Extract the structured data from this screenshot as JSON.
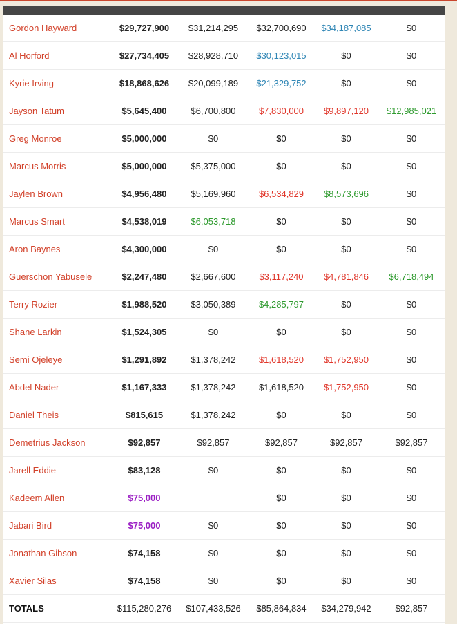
{
  "table": {
    "rows": [
      {
        "name": "Gordon Hayward",
        "cells": [
          "$29,727,900",
          "$31,214,295",
          "$32,700,690",
          "$34,187,085",
          "$0"
        ],
        "colors": [
          null,
          null,
          null,
          "#2f86b5",
          null
        ]
      },
      {
        "name": "Al Horford",
        "cells": [
          "$27,734,405",
          "$28,928,710",
          "$30,123,015",
          "$0",
          "$0"
        ],
        "colors": [
          null,
          null,
          "#2f86b5",
          null,
          null
        ]
      },
      {
        "name": "Kyrie Irving",
        "cells": [
          "$18,868,626",
          "$20,099,189",
          "$21,329,752",
          "$0",
          "$0"
        ],
        "colors": [
          null,
          null,
          "#2f86b5",
          null,
          null
        ]
      },
      {
        "name": "Jayson Tatum",
        "cells": [
          "$5,645,400",
          "$6,700,800",
          "$7,830,000",
          "$9,897,120",
          "$12,985,021"
        ],
        "colors": [
          null,
          null,
          "#e0362a",
          "#e0362a",
          "#2e9a2e"
        ]
      },
      {
        "name": "Greg Monroe",
        "cells": [
          "$5,000,000",
          "$0",
          "$0",
          "$0",
          "$0"
        ],
        "colors": [
          null,
          null,
          null,
          null,
          null
        ]
      },
      {
        "name": "Marcus Morris",
        "cells": [
          "$5,000,000",
          "$5,375,000",
          "$0",
          "$0",
          "$0"
        ],
        "colors": [
          null,
          null,
          null,
          null,
          null
        ]
      },
      {
        "name": "Jaylen Brown",
        "cells": [
          "$4,956,480",
          "$5,169,960",
          "$6,534,829",
          "$8,573,696",
          "$0"
        ],
        "colors": [
          null,
          null,
          "#e0362a",
          "#2e9a2e",
          null
        ]
      },
      {
        "name": "Marcus Smart",
        "cells": [
          "$4,538,019",
          "$6,053,718",
          "$0",
          "$0",
          "$0"
        ],
        "colors": [
          null,
          "#2e9a2e",
          null,
          null,
          null
        ]
      },
      {
        "name": "Aron Baynes",
        "cells": [
          "$4,300,000",
          "$0",
          "$0",
          "$0",
          "$0"
        ],
        "colors": [
          null,
          null,
          null,
          null,
          null
        ]
      },
      {
        "name": "Guerschon Yabusele",
        "cells": [
          "$2,247,480",
          "$2,667,600",
          "$3,117,240",
          "$4,781,846",
          "$6,718,494"
        ],
        "colors": [
          null,
          null,
          "#e0362a",
          "#e0362a",
          "#2e9a2e"
        ]
      },
      {
        "name": "Terry Rozier",
        "cells": [
          "$1,988,520",
          "$3,050,389",
          "$4,285,797",
          "$0",
          "$0"
        ],
        "colors": [
          null,
          null,
          "#2e9a2e",
          null,
          null
        ]
      },
      {
        "name": "Shane Larkin",
        "cells": [
          "$1,524,305",
          "$0",
          "$0",
          "$0",
          "$0"
        ],
        "colors": [
          null,
          null,
          null,
          null,
          null
        ]
      },
      {
        "name": "Semi Ojeleye",
        "cells": [
          "$1,291,892",
          "$1,378,242",
          "$1,618,520",
          "$1,752,950",
          "$0"
        ],
        "colors": [
          null,
          null,
          "#e0362a",
          "#e0362a",
          null
        ]
      },
      {
        "name": "Abdel Nader",
        "cells": [
          "$1,167,333",
          "$1,378,242",
          "$1,618,520",
          "$1,752,950",
          "$0"
        ],
        "colors": [
          null,
          null,
          null,
          "#e0362a",
          null
        ]
      },
      {
        "name": "Daniel Theis",
        "cells": [
          "$815,615",
          "$1,378,242",
          "$0",
          "$0",
          "$0"
        ],
        "colors": [
          null,
          null,
          null,
          null,
          null
        ]
      },
      {
        "name": "Demetrius Jackson",
        "cells": [
          "$92,857",
          "$92,857",
          "$92,857",
          "$92,857",
          "$92,857"
        ],
        "colors": [
          null,
          null,
          null,
          null,
          null
        ]
      },
      {
        "name": "Jarell Eddie",
        "cells": [
          "$83,128",
          "$0",
          "$0",
          "$0",
          "$0"
        ],
        "colors": [
          null,
          null,
          null,
          null,
          null
        ]
      },
      {
        "name": "Kadeem Allen",
        "cells": [
          "$75,000",
          null,
          "$0",
          "$0",
          "$0"
        ],
        "colors": [
          "#9b1fc4",
          null,
          null,
          null,
          null
        ]
      },
      {
        "name": "Jabari Bird",
        "cells": [
          "$75,000",
          "$0",
          "$0",
          "$0",
          "$0"
        ],
        "colors": [
          "#9b1fc4",
          null,
          null,
          null,
          null
        ]
      },
      {
        "name": "Jonathan Gibson",
        "cells": [
          "$74,158",
          "$0",
          "$0",
          "$0",
          "$0"
        ],
        "colors": [
          null,
          null,
          null,
          null,
          null
        ]
      },
      {
        "name": "Xavier Silas",
        "cells": [
          "$74,158",
          "$0",
          "$0",
          "$0",
          "$0"
        ],
        "colors": [
          null,
          null,
          null,
          null,
          null
        ]
      }
    ],
    "totals": {
      "label": "TOTALS",
      "cells": [
        "$115,280,276",
        "$107,433,526",
        "$85,864,834",
        "$34,279,942",
        "$92,857"
      ]
    }
  }
}
